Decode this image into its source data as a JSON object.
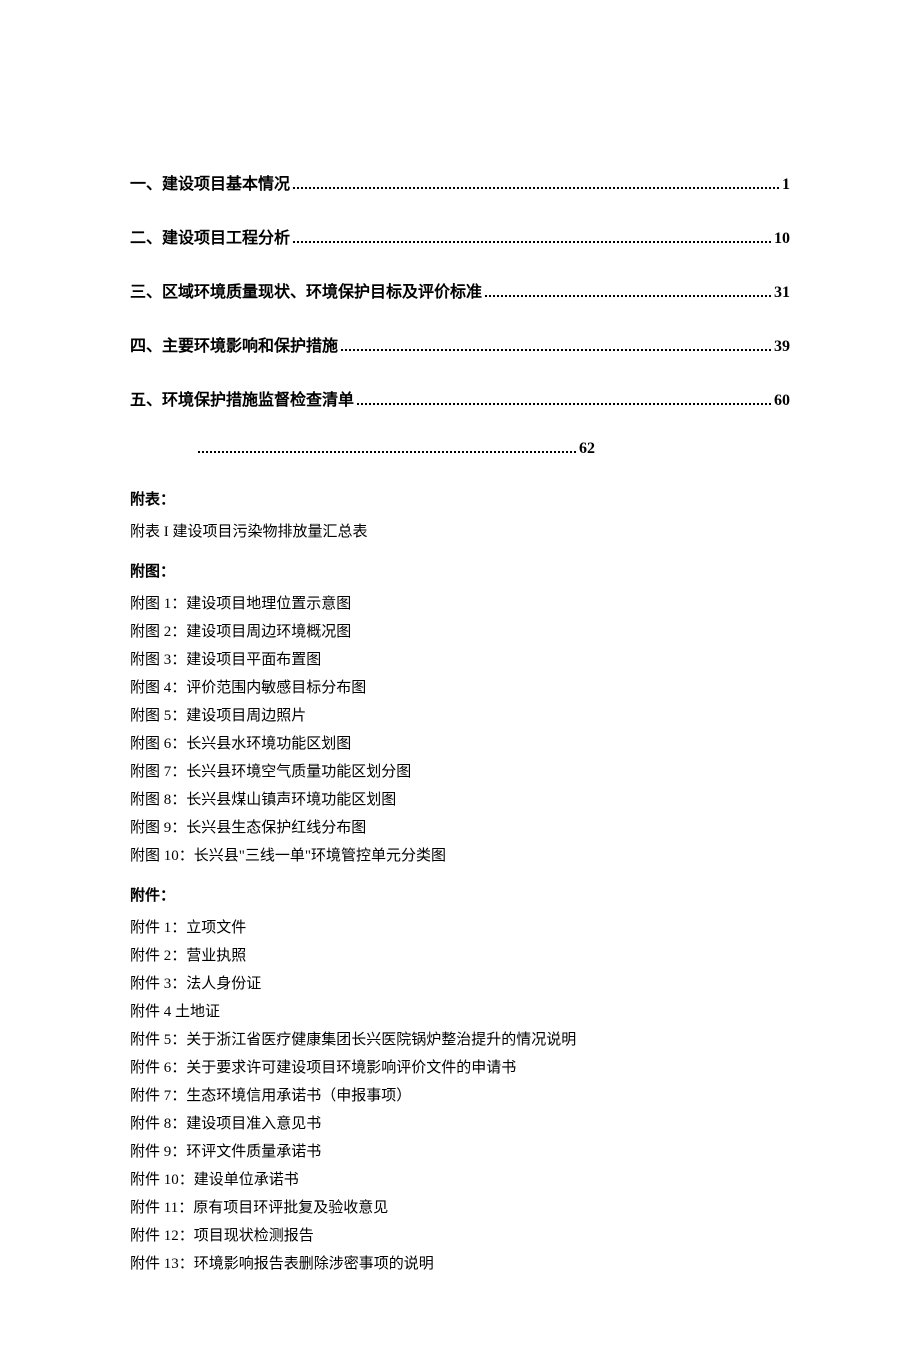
{
  "toc": [
    {
      "label": "一、建设项目基本情况",
      "page": "1"
    },
    {
      "label": "二、建设项目工程分析",
      "page": "10"
    },
    {
      "label": "三、区域环境质量现状、环境保护目标及评价标准",
      "page": "31"
    },
    {
      "label": "四、主要环境影响和保护措施",
      "page": "39"
    },
    {
      "label": "五、环境保护措施监督检查清单",
      "page": "60"
    }
  ],
  "toc_orphan": {
    "page": "62"
  },
  "fubiao_heading": "附表：",
  "fubiao_items": [
    "附表 I 建设项目污染物排放量汇总表"
  ],
  "futu_heading": "附图：",
  "futu_items": [
    "附图 1：建设项目地理位置示意图",
    "附图 2：建设项目周边环境概况图",
    "附图 3：建设项目平面布置图",
    "附图 4：评价范围内敏感目标分布图",
    "附图 5：建设项目周边照片",
    "附图 6：长兴县水环境功能区划图",
    "附图 7：长兴县环境空气质量功能区划分图",
    "附图 8：长兴县煤山镇声环境功能区划图",
    "附图 9：长兴县生态保护红线分布图",
    "附图 10：长兴县\"三线一单\"环境管控单元分类图"
  ],
  "fujian_heading": "附件：",
  "fujian_items": [
    "附件 1：立项文件",
    "附件 2：营业执照",
    "附件 3：法人身份证",
    "附件 4 土地证",
    "附件 5：关于浙江省医疗健康集团长兴医院锅炉整治提升的情况说明",
    "附件 6：关于要求许可建设项目环境影响评价文件的申请书",
    "附件 7：生态环境信用承诺书（申报事项）",
    "附件 8：建设项目准入意见书",
    "附件 9：环评文件质量承诺书",
    "附件 10：建设单位承诺书",
    "附件 11：原有项目环评批复及验收意见",
    "附件 12：项目现状检测报告",
    "附件 13：环境影响报告表删除涉密事项的说明"
  ]
}
